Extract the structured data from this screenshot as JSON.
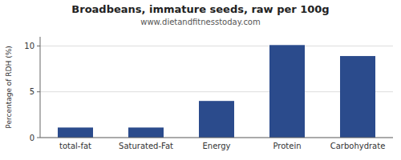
{
  "chart_data": {
    "type": "bar",
    "title": "Broadbeans, immature seeds, raw per 100g",
    "subtitle": "www.dietandfitnesstoday.com",
    "categories": [
      "total-fat",
      "Saturated-Fat",
      "Energy",
      "Protein",
      "Carbohydrate"
    ],
    "values": [
      1.1,
      1.1,
      4.0,
      10.1,
      8.9
    ],
    "color": "#2b4b8c",
    "ylabel": "Percentage of RDH (%)",
    "ylim": [
      0,
      11
    ],
    "yticks": [
      0,
      5,
      10
    ],
    "grid": true
  }
}
